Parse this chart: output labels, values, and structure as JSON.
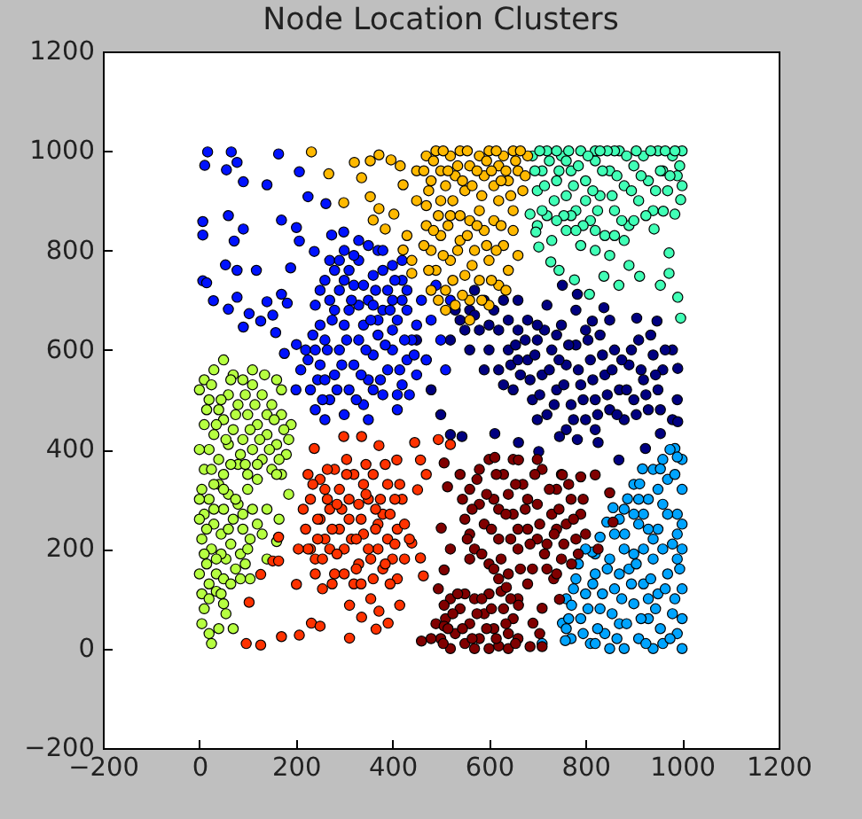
{
  "chart_data": {
    "type": "scatter",
    "title": "Node Location Clusters",
    "xlim": [
      -200,
      1200
    ],
    "ylim": [
      -200,
      1200
    ],
    "xticks": [
      -200,
      0,
      200,
      400,
      600,
      800,
      1000,
      1200
    ],
    "yticks": [
      -200,
      0,
      200,
      400,
      600,
      800,
      1000,
      1200
    ],
    "grid": false,
    "legend": false,
    "marker": "circle",
    "series": [
      {
        "color": "#000080",
        "x": [
          620,
          640,
          650,
          660,
          680,
          690,
          700,
          710,
          720,
          730,
          740,
          750,
          760,
          770,
          780,
          790,
          800,
          810,
          820,
          830,
          840,
          850,
          860,
          870,
          880,
          890,
          900,
          910,
          920,
          930,
          940,
          950,
          700,
          760,
          820,
          680,
          600,
          580,
          560,
          540,
          520,
          560,
          590,
          610,
          630,
          570,
          660,
          720,
          780,
          850,
          960,
          980,
          990,
          980,
          752,
          783,
          838,
          906,
          948,
          991,
          814,
          544,
          612,
          661,
          703,
          746,
          783,
          826,
          869,
          924,
          955,
          991,
          470,
          480,
          500,
          520,
          450,
          630,
          645,
          655,
          665,
          675,
          685,
          695,
          705,
          715,
          725,
          735,
          745,
          755,
          765,
          775,
          785,
          795,
          805,
          815,
          825,
          835,
          845,
          855,
          865,
          875,
          885,
          895,
          905,
          915,
          925,
          935,
          945,
          955,
          965,
          600,
          570,
          590,
          620,
          550,
          530,
          640,
          660,
          700,
          740,
          800
        ],
        "values": [
          560,
          600,
          520,
          640,
          580,
          500,
          620,
          550,
          470,
          600,
          520,
          650,
          570,
          490,
          610,
          530,
          460,
          580,
          500,
          630,
          550,
          480,
          600,
          520,
          460,
          570,
          500,
          620,
          540,
          480,
          590,
          520,
          460,
          440,
          440,
          660,
          600,
          640,
          680,
          660,
          620,
          600,
          560,
          680,
          700,
          720,
          700,
          690,
          680,
          660,
          560,
          600,
          500,
          460,
          730,
          712,
          685,
          664,
          658,
          563,
          658,
          426,
          432,
          414,
          396,
          426,
          420,
          414,
          379,
          402,
          432,
          456,
          580,
          520,
          470,
          430,
          620,
          530,
          570,
          610,
          550,
          620,
          540,
          590,
          510,
          640,
          560,
          490,
          580,
          530,
          610,
          460,
          560,
          500,
          620,
          540,
          470,
          590,
          510,
          560,
          470,
          580,
          520,
          600,
          470,
          560,
          510,
          630,
          550,
          480,
          600,
          650,
          670,
          700,
          640,
          640,
          680,
          660,
          580,
          650,
          630,
          640
        ]
      },
      {
        "color": "#0012ff",
        "x": [
          17,
          66,
          11,
          56,
          78,
          91,
          140,
          164,
          207,
          225,
          262,
          7,
          7,
          60,
          91,
          72,
          170,
          201,
          207,
          238,
          54,
          78,
          118,
          7,
          15,
          29,
          78,
          60,
          103,
          140,
          152,
          170,
          182,
          91,
          127,
          158,
          176,
          201,
          189,
          274,
          299,
          250,
          270,
          280,
          300,
          310,
          320,
          330,
          340,
          350,
          360,
          370,
          380,
          390,
          400,
          410,
          420,
          300,
          260,
          290,
          350,
          330,
          370,
          400,
          240,
          310,
          380,
          420,
          430,
          210,
          220,
          230,
          240,
          250,
          260,
          270,
          280,
          290,
          300,
          310,
          320,
          330,
          340,
          350,
          360,
          370,
          380,
          390,
          400,
          410,
          420,
          430,
          440,
          260,
          350,
          450,
          200,
          460,
          480,
          500,
          470,
          510,
          520,
          490,
          450,
          225,
          235,
          245,
          255,
          265,
          275,
          285,
          295,
          305,
          315,
          325,
          335,
          345,
          355,
          365,
          375,
          385,
          395,
          405,
          415,
          425,
          435,
          445,
          280,
          300,
          320,
          340,
          360,
          380,
          400,
          420,
          270,
          290,
          250,
          330,
          430,
          240,
          260,
          360,
          410
        ],
        "values": [
          998,
          998,
          971,
          962,
          977,
          938,
          932,
          994,
          958,
          908,
          894,
          858,
          831,
          870,
          843,
          819,
          861,
          846,
          819,
          798,
          771,
          760,
          760,
          739,
          735,
          699,
          706,
          682,
          673,
          697,
          670,
          712,
          694,
          646,
          658,
          635,
          593,
          611,
          765,
          831,
          837,
          650,
          700,
          760,
          800,
          680,
          730,
          780,
          650,
          700,
          750,
          800,
          680,
          720,
          770,
          660,
          700,
          650,
          740,
          720,
          810,
          690,
          660,
          640,
          690,
          760,
          760,
          740,
          680,
          560,
          600,
          520,
          480,
          570,
          620,
          500,
          550,
          600,
          470,
          520,
          570,
          620,
          490,
          540,
          590,
          630,
          510,
          560,
          600,
          480,
          530,
          580,
          620,
          460,
          460,
          550,
          520,
          700,
          660,
          620,
          580,
          560,
          700,
          730,
          650,
          580,
          630,
          540,
          500,
          600,
          660,
          520,
          570,
          620,
          700,
          500,
          550,
          600,
          660,
          720,
          540,
          610,
          680,
          740,
          560,
          620,
          510,
          590,
          680,
          740,
          790,
          730,
          690,
          800,
          700,
          780,
          780,
          780,
          720,
          820,
          720,
          600,
          540,
          520,
          510
        ]
      },
      {
        "color": "#00a4ff",
        "x": [
          770,
          790,
          800,
          810,
          820,
          830,
          840,
          850,
          860,
          870,
          880,
          890,
          900,
          910,
          920,
          930,
          940,
          950,
          960,
          970,
          980,
          990,
          1000,
          1000,
          780,
          820,
          760,
          850,
          940,
          900,
          990,
          870,
          930,
          860,
          880,
          900,
          910,
          920,
          930,
          940,
          950,
          960,
          970,
          980,
          990,
          1000,
          1000,
          990,
          960,
          920,
          985,
          990,
          955,
          918,
          912,
          887,
          857,
          844,
          881,
          830,
          814,
          771,
          752,
          710,
          758,
          800,
          765,
          775,
          785,
          795,
          805,
          815,
          825,
          835,
          845,
          855,
          865,
          875,
          885,
          895,
          905,
          915,
          925,
          935,
          945,
          955,
          965,
          975,
          985,
          995,
          1000,
          880,
          940,
          870,
          900,
          930,
          950,
          970,
          985,
          1000,
          960,
          910,
          975,
          1000,
          820,
          760
        ],
        "values": [
          20,
          60,
          110,
          10,
          150,
          80,
          30,
          180,
          120,
          50,
          0,
          160,
          90,
          20,
          130,
          60,
          180,
          110,
          10,
          150,
          70,
          30,
          120,
          0,
          140,
          190,
          100,
          0,
          0,
          190,
          180,
          150,
          100,
          230,
          280,
          330,
          250,
          200,
          300,
          360,
          240,
          290,
          340,
          210,
          270,
          320,
          380,
          230,
          380,
          270,
          402,
          385,
          361,
          361,
          331,
          301,
          283,
          254,
          230,
          224,
          194,
          87,
          51,
          10,
          16,
          200,
          60,
          120,
          170,
          30,
          80,
          130,
          40,
          110,
          160,
          70,
          20,
          100,
          50,
          130,
          170,
          60,
          10,
          140,
          80,
          40,
          120,
          20,
          100,
          160,
          60,
          200,
          220,
          260,
          270,
          240,
          320,
          270,
          350,
          250,
          200,
          300,
          400,
          200,
          10,
          40
        ]
      },
      {
        "color": "#41ffb6",
        "x": [
          690,
          710,
          720,
          740,
          750,
          760,
          770,
          780,
          790,
          800,
          810,
          820,
          830,
          840,
          850,
          860,
          870,
          880,
          890,
          900,
          910,
          920,
          930,
          940,
          950,
          960,
          970,
          980,
          990,
          1000,
          700,
          720,
          730,
          760,
          790,
          820,
          850,
          880,
          700,
          740,
          860,
          820,
          770,
          800,
          728,
          777,
          808,
          838,
          869,
          912,
          955,
          973,
          991,
          997,
          997,
          985,
          961,
          942,
          973,
          685,
          697,
          703,
          745,
          890,
          695,
          705,
          715,
          725,
          735,
          745,
          755,
          765,
          775,
          785,
          795,
          805,
          815,
          825,
          835,
          845,
          855,
          865,
          875,
          885,
          895,
          905,
          915,
          925,
          935,
          945,
          955,
          965,
          975,
          985,
          995,
          1000,
          780,
          820,
          860,
          740,
          710,
          900,
          830,
          760
        ],
        "values": [
          990,
          960,
          1000,
          940,
          990,
          910,
          960,
          880,
          1000,
          940,
          860,
          980,
          910,
          830,
          960,
          880,
          1000,
          930,
          850,
          970,
          900,
          990,
          940,
          880,
          1000,
          960,
          920,
          990,
          950,
          1000,
          920,
          870,
          820,
          840,
          810,
          800,
          790,
          820,
          850,
          1000,
          1000,
          1000,
          870,
          900,
          777,
          741,
          712,
          748,
          730,
          748,
          730,
          754,
          706,
          664,
          902,
          873,
          879,
          843,
          795,
          873,
          837,
          807,
          760,
          770,
          960,
          1000,
          930,
          980,
          900,
          960,
          870,
          1000,
          930,
          970,
          850,
          990,
          920,
          880,
          960,
          1000,
          910,
          950,
          860,
          990,
          920,
          1000,
          950,
          870,
          1000,
          920,
          960,
          1000,
          950,
          1000,
          970,
          930,
          840,
          840,
          830,
          860,
          880,
          860,
          1000,
          980
        ]
      },
      {
        "color": "#b6ff41",
        "x": [
          10,
          30,
          50,
          70,
          90,
          110,
          130,
          150,
          170,
          190,
          20,
          40,
          60,
          80,
          100,
          120,
          140,
          160,
          180,
          10,
          30,
          50,
          70,
          90,
          110,
          130,
          150,
          170,
          20,
          40,
          60,
          80,
          100,
          120,
          10,
          50,
          140,
          170,
          185,
          110,
          160,
          5,
          20,
          40,
          60,
          80,
          100,
          10,
          30,
          50,
          70,
          90,
          5,
          25,
          45,
          65,
          85,
          105,
          15,
          35,
          55,
          75,
          20,
          50,
          95,
          120,
          130,
          160,
          165,
          185,
          140,
          110,
          140,
          105,
          5,
          20,
          35,
          10,
          50,
          5,
          20,
          40,
          55,
          25,
          70,
          45,
          0,
          15,
          25,
          35,
          45,
          55,
          65,
          75,
          85,
          95,
          105,
          115,
          125,
          135,
          145,
          155,
          165,
          175,
          0,
          25,
          65,
          95,
          0,
          15,
          30,
          45,
          60,
          75,
          90,
          100,
          10,
          35,
          0,
          65,
          85,
          0,
          50,
          30,
          120,
          160
        ],
        "values": [
          540,
          560,
          580,
          550,
          540,
          530,
          510,
          490,
          470,
          450,
          500,
          480,
          510,
          490,
          470,
          450,
          430,
          410,
          390,
          450,
          430,
          460,
          440,
          420,
          400,
          380,
          360,
          350,
          400,
          380,
          410,
          370,
          350,
          340,
          360,
          350,
          470,
          520,
          420,
          560,
          540,
          320,
          300,
          330,
          310,
          290,
          320,
          270,
          250,
          280,
          260,
          240,
          220,
          200,
          230,
          210,
          190,
          220,
          170,
          150,
          180,
          160,
          130,
          140,
          170,
          250,
          230,
          215,
          260,
          310,
          280,
          280,
          180,
          140,
          110,
          100,
          115,
          80,
          90,
          50,
          30,
          40,
          70,
          10,
          40,
          110,
          520,
          480,
          530,
          450,
          500,
          420,
          540,
          470,
          390,
          510,
          440,
          490,
          420,
          550,
          400,
          460,
          380,
          440,
          400,
          360,
          370,
          370,
          300,
          240,
          280,
          190,
          240,
          300,
          270,
          200,
          190,
          180,
          150,
          130,
          140,
          260,
          320,
          330,
          370,
          350
        ]
      },
      {
        "color": "#ffb900",
        "x": [
          232,
          268,
          299,
          321,
          336,
          354,
          372,
          397,
          416,
          422,
          354,
          360,
          372,
          385,
          403,
          422,
          440,
          440,
          430,
          450,
          450,
          470,
          490,
          500,
          510,
          520,
          530,
          540,
          550,
          560,
          580,
          590,
          600,
          610,
          620,
          630,
          640,
          650,
          660,
          670,
          680,
          480,
          500,
          620,
          650,
          470,
          470,
          480,
          490,
          500,
          510,
          520,
          520,
          530,
          540,
          550,
          560,
          560,
          570,
          580,
          590,
          600,
          600,
          610,
          620,
          630,
          640,
          650,
          660,
          480,
          540,
          580,
          510,
          560,
          465,
          475,
          485,
          495,
          505,
          515,
          525,
          535,
          545,
          555,
          565,
          575,
          585,
          595,
          605,
          615,
          625,
          635,
          645,
          655,
          665,
          675,
          465,
          475,
          485,
          495,
          505,
          515,
          525,
          535,
          545,
          555,
          565,
          575,
          585,
          595,
          605,
          615,
          625,
          635
        ],
        "values": [
          998,
          954,
          896,
          977,
          946,
          980,
          992,
          982,
          970,
          932,
          908,
          861,
          884,
          843,
          873,
          801,
          780,
          754,
          830,
          900,
          960,
          990,
          1000,
          960,
          930,
          990,
          950,
          1000,
          920,
          970,
          990,
          950,
          1000,
          930,
          970,
          990,
          940,
          1000,
          960,
          920,
          990,
          940,
          900,
          900,
          880,
          890,
          850,
          800,
          760,
          830,
          720,
          870,
          780,
          690,
          820,
          750,
          860,
          700,
          800,
          740,
          840,
          780,
          690,
          860,
          730,
          810,
          760,
          840,
          790,
          720,
          870,
          880,
          680,
          660,
          960,
          920,
          980,
          870,
          1000,
          960,
          900,
          970,
          940,
          1000,
          930,
          960,
          910,
          980,
          960,
          1000,
          940,
          960,
          910,
          980,
          1000,
          950,
          810,
          760,
          840,
          700,
          790,
          850,
          740,
          800,
          710,
          830,
          770,
          850,
          700,
          810,
          740,
          800,
          850,
          720
        ]
      },
      {
        "color": "#ff3200",
        "x": [
          238,
          299,
          336,
          372,
          409,
          446,
          458,
          470,
          452,
          495,
          520,
          440,
          458,
          464,
          164,
          152,
          127,
          103,
          97,
          127,
          170,
          207,
          232,
          250,
          311,
          311,
          336,
          372,
          391,
          201,
          164,
          366,
          415,
          220,
          230,
          240,
          250,
          260,
          270,
          280,
          290,
          300,
          310,
          320,
          330,
          340,
          350,
          360,
          370,
          380,
          390,
          400,
          410,
          420,
          250,
          270,
          290,
          310,
          330,
          350,
          370,
          390,
          300,
          340,
          280,
          360,
          230,
          410,
          240,
          260,
          320,
          380,
          215,
          225,
          235,
          245,
          255,
          265,
          275,
          285,
          295,
          305,
          315,
          325,
          335,
          345,
          355,
          365,
          375,
          385,
          395,
          405,
          415,
          425,
          225,
          265,
          305,
          345,
          385,
          425,
          205,
          245,
          285,
          325,
          365,
          405,
          275,
          335,
          395,
          355,
          255,
          435
        ],
        "values": [
          402,
          426,
          426,
          408,
          379,
          414,
          379,
          350,
          319,
          420,
          410,
          212,
          182,
          146,
          224,
          176,
          149,
          93,
          10,
          7,
          24,
          27,
          51,
          45,
          87,
          21,
          63,
          75,
          51,
          129,
          176,
          39,
          87,
          240,
          300,
          180,
          340,
          220,
          280,
          150,
          320,
          200,
          260,
          350,
          170,
          230,
          300,
          140,
          200,
          270,
          330,
          180,
          240,
          300,
          260,
          200,
          240,
          300,
          290,
          200,
          250,
          220,
          150,
          330,
          360,
          350,
          200,
          140,
          150,
          320,
          130,
          160,
          280,
          200,
          330,
          260,
          180,
          300,
          240,
          190,
          280,
          350,
          220,
          160,
          260,
          310,
          180,
          240,
          300,
          170,
          270,
          210,
          330,
          250,
          350,
          360,
          380,
          370,
          370,
          180,
          200,
          220,
          290,
          220,
          280,
          300,
          130,
          130,
          130,
          100,
          120,
          220
        ]
      },
      {
        "color": "#800000",
        "x": [
          550,
          560,
          570,
          580,
          590,
          600,
          610,
          620,
          630,
          640,
          650,
          660,
          670,
          680,
          690,
          700,
          710,
          720,
          730,
          740,
          750,
          760,
          770,
          780,
          790,
          600,
          650,
          700,
          620,
          660,
          700,
          740,
          680,
          640,
          580,
          720,
          800,
          560,
          610,
          750,
          500,
          510,
          520,
          530,
          540,
          550,
          560,
          570,
          580,
          590,
          600,
          610,
          620,
          630,
          640,
          650,
          660,
          520,
          570,
          600,
          640,
          660,
          490,
          550,
          625,
          612,
          661,
          752,
          790,
          820,
          850,
          857,
          826,
          771,
          734,
          746,
          710,
          691,
          705,
          685,
          710,
          507,
          514,
          501,
          507,
          636,
          661,
          480,
          460,
          507,
          507,
          495,
          520,
          545,
          555,
          565,
          575,
          585,
          595,
          605,
          615,
          625,
          635,
          645,
          655,
          665,
          675,
          685,
          695,
          705,
          715,
          725,
          735,
          745,
          755,
          765,
          775,
          785,
          795,
          620,
          680,
          740,
          560,
          540,
          505,
          515,
          525,
          535,
          545,
          565,
          575,
          585,
          595,
          605,
          615,
          635,
          645,
          655
        ],
        "values": [
          260,
          320,
          200,
          360,
          250,
          170,
          300,
          220,
          350,
          150,
          270,
          200,
          330,
          240,
          160,
          290,
          360,
          210,
          270,
          320,
          180,
          250,
          300,
          220,
          270,
          380,
          380,
          380,
          280,
          240,
          220,
          240,
          300,
          310,
          290,
          160,
          230,
          230,
          160,
          350,
          20,
          60,
          100,
          30,
          80,
          10,
          50,
          100,
          20,
          70,
          110,
          40,
          5,
          80,
          30,
          60,
          100,
          0,
          0,
          0,
          0,
          20,
          50,
          110,
          115,
          384,
          379,
          349,
          345,
          349,
          313,
          254,
          200,
          170,
          140,
          99,
          81,
          51,
          30,
          4,
          4,
          373,
          325,
          242,
          158,
          123,
          87,
          20,
          15,
          45,
          87,
          120,
          200,
          300,
          220,
          280,
          340,
          190,
          310,
          240,
          350,
          180,
          270,
          220,
          330,
          160,
          280,
          210,
          350,
          250,
          190,
          320,
          230,
          280,
          210,
          330,
          260,
          190,
          300,
          140,
          130,
          150,
          180,
          350,
          10,
          40,
          70,
          110,
          40,
          20,
          70,
          100,
          40,
          80,
          20,
          50,
          100,
          10
        ]
      }
    ]
  }
}
